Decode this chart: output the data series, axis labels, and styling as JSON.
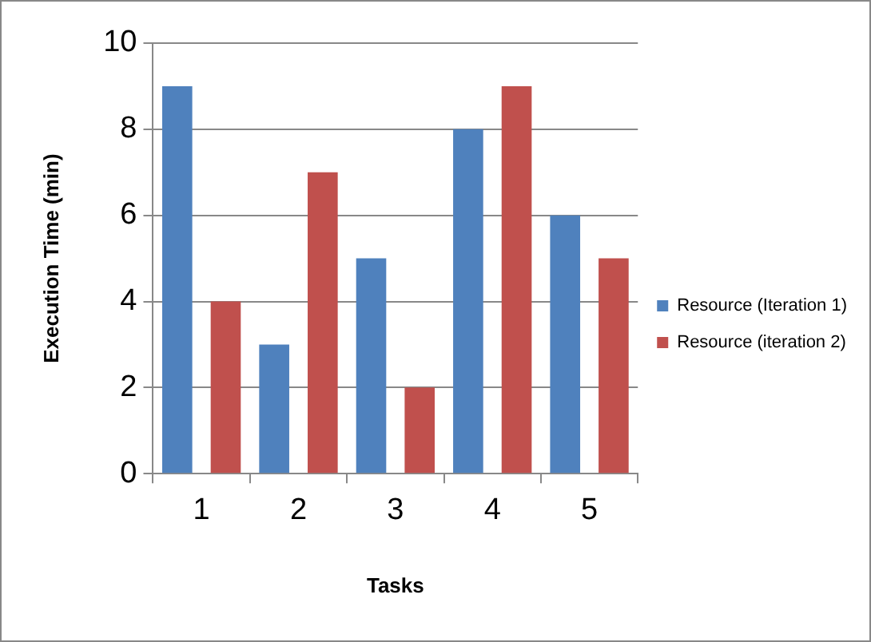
{
  "chart_data": {
    "type": "bar",
    "xlabel": "Tasks",
    "ylabel": "Execution Time (min)",
    "categories": [
      "1",
      "2",
      "3",
      "4",
      "5"
    ],
    "series": [
      {
        "name": "Resource (Iteration 1)",
        "color": "#4f81bd",
        "values": [
          9,
          3,
          5,
          8,
          6
        ]
      },
      {
        "name": "Resource (iteration 2)",
        "color": "#c0504d",
        "values": [
          4,
          7,
          2,
          9,
          5
        ]
      }
    ],
    "ylim": [
      0,
      10
    ],
    "yticks": [
      0,
      2,
      4,
      6,
      8,
      10
    ],
    "grid": "y",
    "legend": "right"
  }
}
